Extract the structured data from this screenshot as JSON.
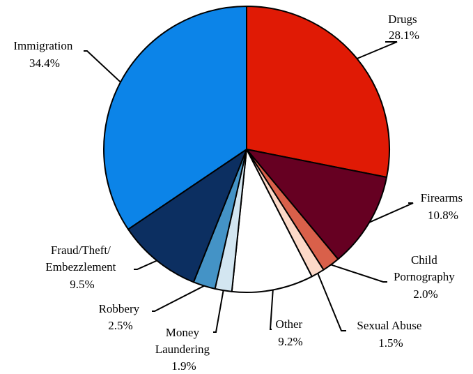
{
  "chart_data": {
    "type": "pie",
    "start_angle_deg": 0,
    "direction": "clockwise",
    "slices": [
      {
        "category": "Drugs",
        "value": 28.1,
        "label": "28.1%",
        "color": "#e01a05"
      },
      {
        "category": "Firearms",
        "value": 10.8,
        "label": "10.8%",
        "color": "#660022"
      },
      {
        "category": "Child Pornography",
        "value": 2.0,
        "label": "2.0%",
        "color": "#d9604a"
      },
      {
        "category": "Sexual Abuse",
        "value": 1.5,
        "label": "1.5%",
        "color": "#fcd9c8"
      },
      {
        "category": "Other",
        "value": 9.2,
        "label": "9.2%",
        "color": "#ffffff"
      },
      {
        "category": "Money Laundering",
        "value": 1.9,
        "label": "1.9%",
        "color": "#d3e6f1"
      },
      {
        "category": "Robbery",
        "value": 2.5,
        "label": "2.5%",
        "color": "#4493c6"
      },
      {
        "category": "Fraud/Theft/Embezzlement",
        "value": 9.5,
        "label": "9.5%",
        "color": "#0c2f61"
      },
      {
        "category": "Immigration",
        "value": 34.4,
        "label": "34.4%",
        "color": "#0c84e8"
      }
    ]
  }
}
